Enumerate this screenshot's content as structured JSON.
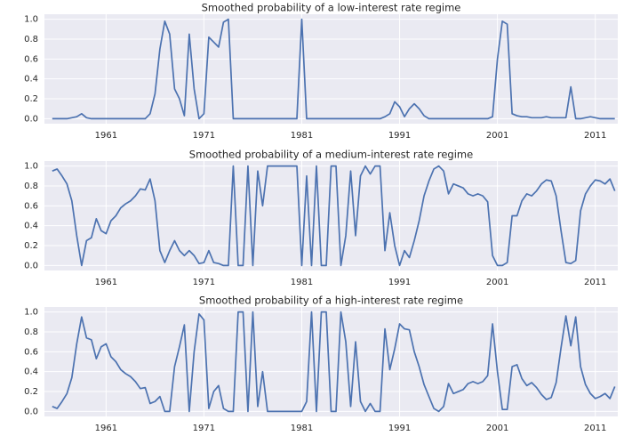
{
  "chart_data": [
    {
      "type": "line",
      "title": "Smoothed probability of a low-interest rate regime",
      "color": "#4c72b0",
      "grid": true,
      "xlim": [
        1954.7,
        2013.3
      ],
      "xticks": [
        1961,
        1971,
        1981,
        1991,
        2001,
        2011
      ],
      "ylim": [
        -0.05,
        1.05
      ],
      "yticks": [
        {
          "value": 0,
          "label": "0.0"
        },
        0.2,
        0.4,
        0.6,
        0.8,
        {
          "value": 1,
          "label": "1.0"
        }
      ],
      "x": [
        1955.5,
        1956,
        1956.5,
        1957,
        1957.5,
        1958,
        1958.5,
        1959,
        1959.5,
        1960,
        1960.5,
        1961,
        1961.5,
        1962,
        1962.5,
        1963,
        1963.5,
        1964,
        1964.5,
        1965,
        1965.5,
        1966,
        1966.5,
        1967,
        1967.5,
        1968,
        1968.5,
        1969,
        1969.5,
        1970,
        1970.5,
        1971,
        1971.5,
        1972,
        1972.5,
        1973,
        1973.5,
        1974,
        1974.5,
        1975,
        1975.5,
        1976,
        1976.5,
        1977,
        1977.5,
        1978,
        1978.5,
        1979,
        1979.5,
        1980,
        1980.5,
        1981,
        1981.5,
        1982,
        1982.5,
        1983,
        1983.5,
        1984,
        1984.5,
        1985,
        1985.5,
        1986,
        1986.5,
        1987,
        1987.5,
        1988,
        1988.5,
        1989,
        1989.5,
        1990,
        1990.5,
        1991,
        1991.5,
        1992,
        1992.5,
        1993,
        1993.5,
        1994,
        1994.5,
        1995,
        1995.5,
        1996,
        1996.5,
        1997,
        1997.5,
        1998,
        1998.5,
        1999,
        1999.5,
        2000,
        2000.5,
        2001,
        2001.5,
        2002,
        2002.5,
        2003,
        2003.5,
        2004,
        2004.5,
        2005,
        2005.5,
        2006,
        2006.5,
        2007,
        2007.5,
        2008,
        2008.5,
        2009,
        2009.5,
        2010,
        2010.5,
        2011,
        2011.5,
        2012,
        2012.5,
        2013
      ],
      "values": [
        0,
        0,
        0,
        0,
        0.01,
        0.02,
        0.05,
        0.01,
        0,
        0,
        0,
        0,
        0,
        0,
        0,
        0,
        0,
        0,
        0,
        0,
        0.05,
        0.25,
        0.7,
        0.98,
        0.85,
        0.3,
        0.2,
        0.03,
        0.85,
        0.3,
        0,
        0.05,
        0.82,
        0.77,
        0.72,
        0.97,
        1,
        0,
        0,
        0,
        0,
        0,
        0,
        0,
        0,
        0,
        0,
        0,
        0,
        0,
        0,
        1,
        0,
        0,
        0,
        0,
        0,
        0,
        0,
        0,
        0,
        0,
        0,
        0,
        0,
        0,
        0,
        0,
        0.02,
        0.05,
        0.17,
        0.12,
        0.02,
        0.1,
        0.15,
        0.1,
        0.03,
        0,
        0,
        0,
        0,
        0,
        0,
        0,
        0,
        0,
        0,
        0,
        0,
        0,
        0.02,
        0.6,
        0.98,
        0.95,
        0.05,
        0.03,
        0.02,
        0.02,
        0.01,
        0.01,
        0.01,
        0.02,
        0.01,
        0.01,
        0.01,
        0.01,
        0.32,
        0,
        0,
        0.01,
        0.02,
        0.01,
        0,
        0,
        0,
        0
      ]
    },
    {
      "type": "line",
      "title": "Smoothed probability of a medium-interest rate regime",
      "color": "#4c72b0",
      "grid": true,
      "xlim": [
        1954.7,
        2013.3
      ],
      "xticks": [
        1961,
        1971,
        1981,
        1991,
        2001,
        2011
      ],
      "ylim": [
        -0.05,
        1.05
      ],
      "yticks": [
        {
          "value": 0,
          "label": "0.0"
        },
        0.2,
        0.4,
        0.6,
        0.8,
        {
          "value": 1,
          "label": "1.0"
        }
      ],
      "x": [
        1955.5,
        1956,
        1956.5,
        1957,
        1957.5,
        1958,
        1958.5,
        1959,
        1959.5,
        1960,
        1960.5,
        1961,
        1961.5,
        1962,
        1962.5,
        1963,
        1963.5,
        1964,
        1964.5,
        1965,
        1965.5,
        1966,
        1966.5,
        1967,
        1967.5,
        1968,
        1968.5,
        1969,
        1969.5,
        1970,
        1970.5,
        1971,
        1971.5,
        1972,
        1972.5,
        1973,
        1973.5,
        1974,
        1974.5,
        1975,
        1975.5,
        1976,
        1976.5,
        1977,
        1977.5,
        1978,
        1978.5,
        1979,
        1979.5,
        1980,
        1980.5,
        1981,
        1981.5,
        1982,
        1982.5,
        1983,
        1983.5,
        1984,
        1984.5,
        1985,
        1985.5,
        1986,
        1986.5,
        1987,
        1987.5,
        1988,
        1988.5,
        1989,
        1989.5,
        1990,
        1990.5,
        1991,
        1991.5,
        1992,
        1992.5,
        1993,
        1993.5,
        1994,
        1994.5,
        1995,
        1995.5,
        1996,
        1996.5,
        1997,
        1997.5,
        1998,
        1998.5,
        1999,
        1999.5,
        2000,
        2000.5,
        2001,
        2001.5,
        2002,
        2002.5,
        2003,
        2003.5,
        2004,
        2004.5,
        2005,
        2005.5,
        2006,
        2006.5,
        2007,
        2007.5,
        2008,
        2008.5,
        2009,
        2009.5,
        2010,
        2010.5,
        2011,
        2011.5,
        2012,
        2012.5,
        2013
      ],
      "values": [
        0.95,
        0.97,
        0.9,
        0.82,
        0.65,
        0.3,
        0,
        0.25,
        0.28,
        0.47,
        0.35,
        0.32,
        0.45,
        0.5,
        0.58,
        0.62,
        0.65,
        0.7,
        0.77,
        0.76,
        0.87,
        0.65,
        0.15,
        0.03,
        0.15,
        0.25,
        0.15,
        0.1,
        0.15,
        0.1,
        0.02,
        0.03,
        0.15,
        0.03,
        0.02,
        0,
        0,
        1,
        0,
        0,
        1,
        0,
        0.95,
        0.6,
        1,
        1,
        1,
        1,
        1,
        1,
        1,
        0,
        0.9,
        0,
        1,
        0,
        0,
        1,
        1,
        0,
        0.3,
        0.95,
        0.3,
        0.9,
        1,
        0.92,
        1,
        1,
        0.15,
        0.53,
        0.2,
        0,
        0.15,
        0.08,
        0.25,
        0.45,
        0.7,
        0.85,
        0.97,
        1,
        0.95,
        0.72,
        0.82,
        0.8,
        0.78,
        0.72,
        0.7,
        0.72,
        0.7,
        0.64,
        0.1,
        0,
        0,
        0.03,
        0.5,
        0.5,
        0.65,
        0.72,
        0.7,
        0.75,
        0.82,
        0.86,
        0.85,
        0.7,
        0.35,
        0.03,
        0.02,
        0.05,
        0.55,
        0.72,
        0.8,
        0.86,
        0.85,
        0.82,
        0.87,
        0.75
      ]
    },
    {
      "type": "line",
      "title": "Smoothed probability of a high-interest rate regime",
      "color": "#4c72b0",
      "grid": true,
      "xlim": [
        1954.7,
        2013.3
      ],
      "xticks": [
        1961,
        1971,
        1981,
        1991,
        2001,
        2011
      ],
      "ylim": [
        -0.05,
        1.05
      ],
      "yticks": [
        {
          "value": 0,
          "label": "0.0"
        },
        0.2,
        0.4,
        0.6,
        0.8,
        {
          "value": 1,
          "label": "1.0"
        }
      ],
      "x": [
        1955.5,
        1956,
        1956.5,
        1957,
        1957.5,
        1958,
        1958.5,
        1959,
        1959.5,
        1960,
        1960.5,
        1961,
        1961.5,
        1962,
        1962.5,
        1963,
        1963.5,
        1964,
        1964.5,
        1965,
        1965.5,
        1966,
        1966.5,
        1967,
        1967.5,
        1968,
        1968.5,
        1969,
        1969.5,
        1970,
        1970.5,
        1971,
        1971.5,
        1972,
        1972.5,
        1973,
        1973.5,
        1974,
        1974.5,
        1975,
        1975.5,
        1976,
        1976.5,
        1977,
        1977.5,
        1978,
        1978.5,
        1979,
        1979.5,
        1980,
        1980.5,
        1981,
        1981.5,
        1982,
        1982.5,
        1983,
        1983.5,
        1984,
        1984.5,
        1985,
        1985.5,
        1986,
        1986.5,
        1987,
        1987.5,
        1988,
        1988.5,
        1989,
        1989.5,
        1990,
        1990.5,
        1991,
        1991.5,
        1992,
        1992.5,
        1993,
        1993.5,
        1994,
        1994.5,
        1995,
        1995.5,
        1996,
        1996.5,
        1997,
        1997.5,
        1998,
        1998.5,
        1999,
        1999.5,
        2000,
        2000.5,
        2001,
        2001.5,
        2002,
        2002.5,
        2003,
        2003.5,
        2004,
        2004.5,
        2005,
        2005.5,
        2006,
        2006.5,
        2007,
        2007.5,
        2008,
        2008.5,
        2009,
        2009.5,
        2010,
        2010.5,
        2011,
        2011.5,
        2012,
        2012.5,
        2013
      ],
      "values": [
        0.05,
        0.03,
        0.1,
        0.18,
        0.34,
        0.68,
        0.95,
        0.74,
        0.72,
        0.53,
        0.65,
        0.68,
        0.55,
        0.5,
        0.42,
        0.38,
        0.35,
        0.3,
        0.23,
        0.24,
        0.08,
        0.1,
        0.15,
        0,
        0,
        0.45,
        0.65,
        0.87,
        0,
        0.6,
        0.98,
        0.92,
        0.03,
        0.2,
        0.26,
        0.03,
        0,
        0,
        1,
        1,
        0,
        1,
        0.05,
        0.4,
        0,
        0,
        0,
        0,
        0,
        0,
        0,
        0,
        0.1,
        1,
        0,
        1,
        1,
        0,
        0,
        1,
        0.7,
        0.05,
        0.7,
        0.1,
        0,
        0.08,
        0,
        0,
        0.83,
        0.42,
        0.63,
        0.88,
        0.83,
        0.82,
        0.6,
        0.45,
        0.27,
        0.15,
        0.03,
        0,
        0.05,
        0.28,
        0.18,
        0.2,
        0.22,
        0.28,
        0.3,
        0.28,
        0.3,
        0.36,
        0.88,
        0.4,
        0.02,
        0.02,
        0.45,
        0.47,
        0.33,
        0.26,
        0.29,
        0.24,
        0.17,
        0.12,
        0.14,
        0.29,
        0.64,
        0.96,
        0.66,
        0.95,
        0.45,
        0.27,
        0.18,
        0.13,
        0.15,
        0.18,
        0.13,
        0.25
      ]
    }
  ]
}
